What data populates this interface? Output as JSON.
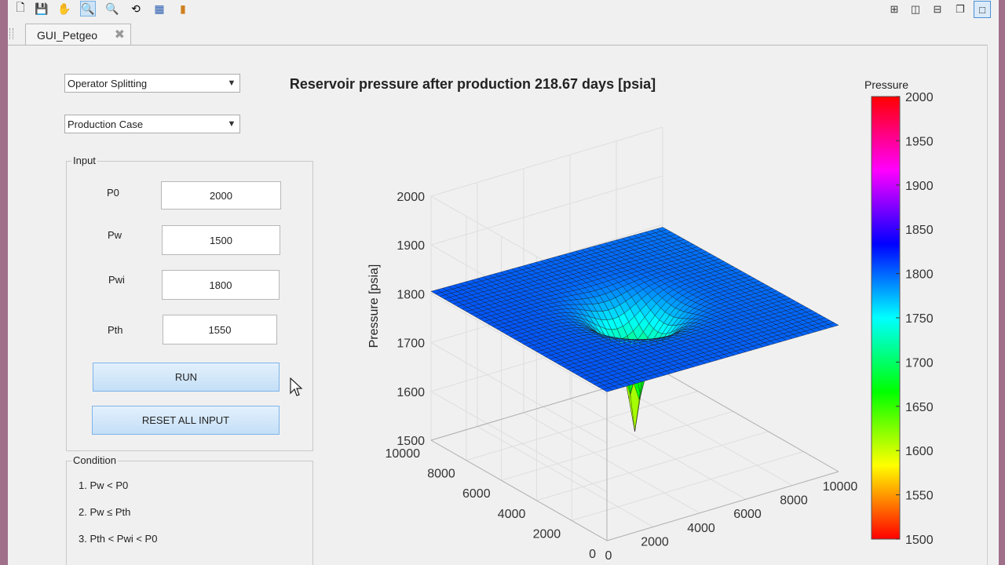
{
  "window": {
    "tab_title": "GUI_Petgeo",
    "tab_close": "✖",
    "toolbar_icons": [
      "new-file-icon",
      "save-icon",
      "pan-hand-icon",
      "zoom-in-icon",
      "zoom-out-icon",
      "rotate-3d-icon",
      "data-cursor-icon",
      "colorbar-icon"
    ],
    "layout_icons": [
      "tile-grid-icon",
      "split-vertical-icon",
      "split-horizontal-icon",
      "float-icon",
      "maximize-icon"
    ]
  },
  "controls": {
    "method_select": "Operator Splitting",
    "case_select": "Production Case",
    "input_panel": {
      "title": "Input",
      "fields": [
        {
          "label": "P0",
          "value": "2000"
        },
        {
          "label": "Pw",
          "value": "1500"
        },
        {
          "label": "Pwi",
          "value": "1800"
        },
        {
          "label": "Pth",
          "value": "1550"
        }
      ],
      "run_label": "RUN",
      "reset_label": "RESET ALL INPUT"
    },
    "condition_panel": {
      "title": "Condition",
      "items": [
        "1. Pw < P0",
        "2. Pw ≤ Pth",
        "3. Pth < Pwi < P0"
      ]
    }
  },
  "chart_data": {
    "type": "surface3d",
    "title": "Reservoir pressure after production 218.67 days [psia]",
    "zlabel": "Pressure [psia]",
    "zlim": [
      1500,
      2000
    ],
    "zticks": [
      "1500",
      "1600",
      "1700",
      "1800",
      "1900",
      "2000"
    ],
    "xticks": [
      "0",
      "2000",
      "4000",
      "6000",
      "8000",
      "10000"
    ],
    "yticks": [
      "0",
      "2000",
      "4000",
      "6000",
      "8000",
      "10000"
    ],
    "xlim": [
      0,
      10000
    ],
    "ylim": [
      0,
      10000
    ],
    "well_location": [
      5000,
      5000
    ],
    "well_pressure": 1550,
    "corner_pressures": {
      "x0_y0": 1805,
      "x0_y10000": 1805,
      "x10000_y10000": 1795,
      "x10000_y0": 1800
    },
    "colorbar": {
      "label": "Pressure",
      "ticks": [
        "2000",
        "1950",
        "1900",
        "1850",
        "1800",
        "1750",
        "1700",
        "1650",
        "1600",
        "1550",
        "1500"
      ],
      "range": [
        1500,
        2000
      ],
      "colormap": "hsv"
    }
  }
}
